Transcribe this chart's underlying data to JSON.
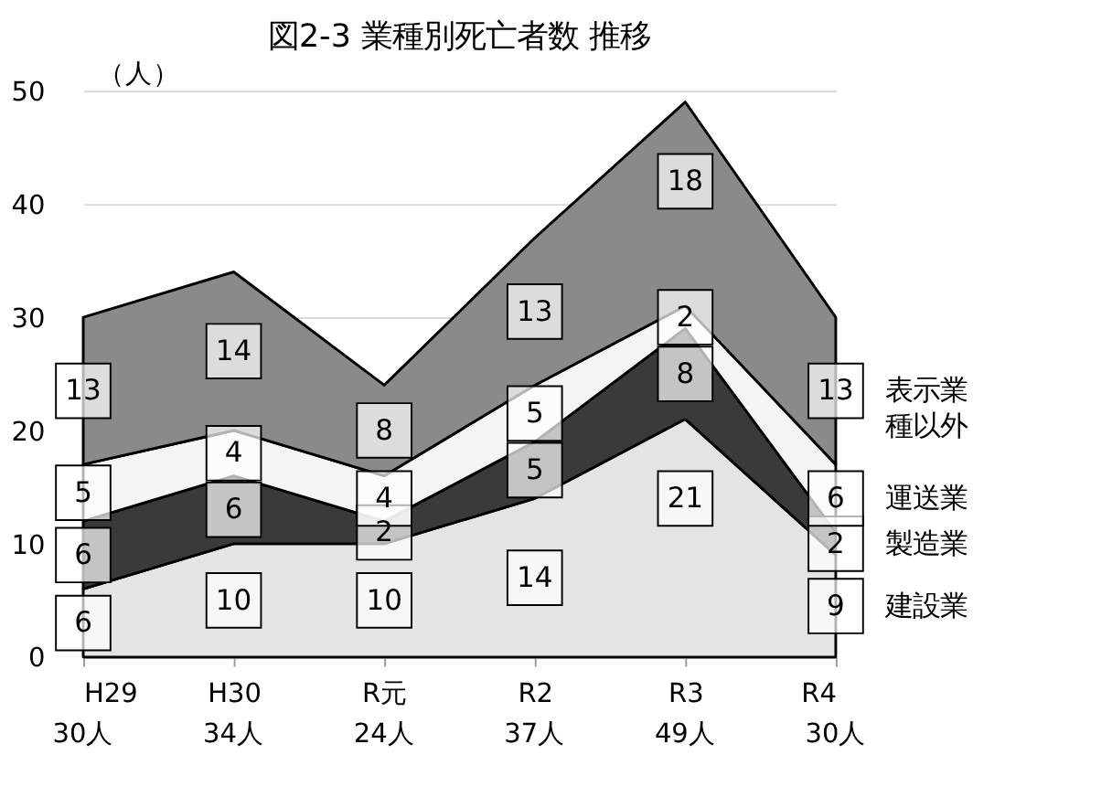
{
  "chart_data": {
    "type": "area",
    "title": "図2-3  業種別死亡者数  推移",
    "ylabel": "（人）",
    "categories": [
      "H29",
      "H30",
      "R元",
      "R2",
      "R3",
      "R4"
    ],
    "annotations": [
      "30人",
      "34人",
      "24人",
      "37人",
      "49人",
      "30人"
    ],
    "stacked": true,
    "legend": "right",
    "grid": "y",
    "ylim": [
      0,
      50
    ],
    "yticks": [
      0,
      10,
      20,
      30,
      40,
      50
    ],
    "series": [
      {
        "name": "建設業",
        "color": "#e4e4e4",
        "values": [
          6,
          10,
          10,
          14,
          21,
          9
        ],
        "value_labels": [
          "6",
          "10",
          "10",
          "14",
          "21",
          "9"
        ]
      },
      {
        "name": "製造業",
        "color": "#3a3a3a",
        "values": [
          6,
          6,
          2,
          5,
          8,
          2
        ],
        "value_labels": [
          "6",
          "6",
          "2",
          "5",
          "8",
          "2"
        ]
      },
      {
        "name": "運送業",
        "color": "#f4f4f4",
        "values": [
          5,
          4,
          4,
          5,
          2,
          6
        ],
        "value_labels": [
          "5",
          "4",
          "4",
          "5",
          "2",
          "6"
        ]
      },
      {
        "name": "表示業種以外",
        "color": "#8a8a8a",
        "values": [
          13,
          14,
          8,
          13,
          18,
          13
        ],
        "value_labels": [
          "13",
          "14",
          "8",
          "13",
          "18",
          "13"
        ]
      }
    ]
  }
}
